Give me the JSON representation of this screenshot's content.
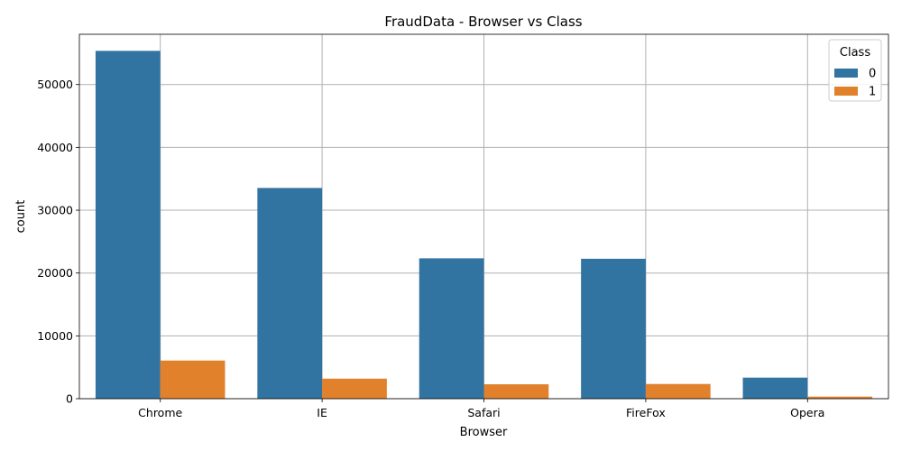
{
  "chart_data": {
    "type": "bar",
    "title": "FraudData - Browser vs Class",
    "xlabel": "Browser",
    "ylabel": "count",
    "categories": [
      "Chrome",
      "IE",
      "Safari",
      "FireFox",
      "Opera"
    ],
    "series": [
      {
        "name": "0",
        "color": "#3274a1",
        "values": [
          55360,
          33540,
          22340,
          22270,
          3350
        ]
      },
      {
        "name": "1",
        "color": "#e1812c",
        "values": [
          6070,
          3190,
          2290,
          2340,
          330
        ]
      }
    ],
    "ylim": [
      0,
      58000
    ],
    "yticks": [
      0,
      10000,
      20000,
      30000,
      40000,
      50000
    ],
    "grid": true,
    "legend": {
      "title": "Class",
      "position": "top-right"
    }
  }
}
